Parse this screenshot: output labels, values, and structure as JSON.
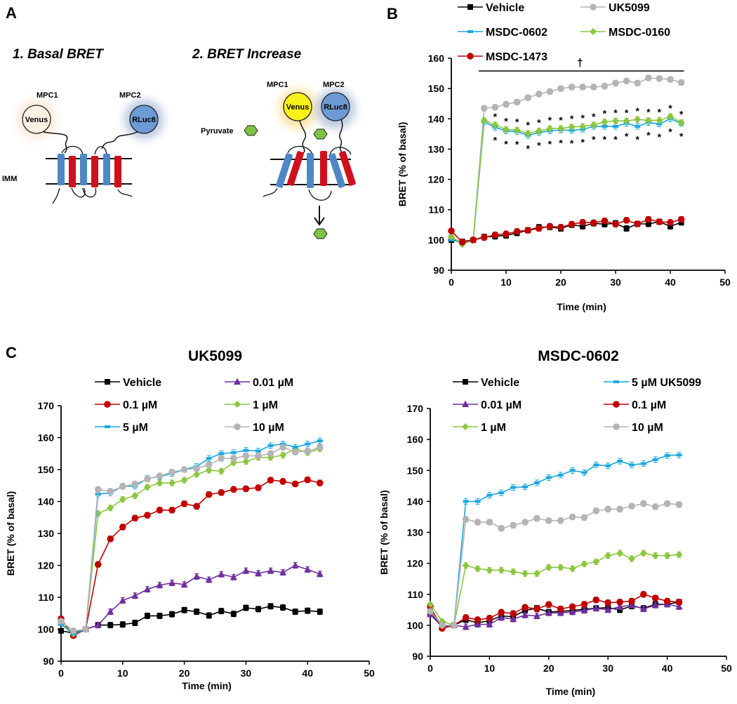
{
  "panels": {
    "A": {
      "letter": "A",
      "step1_title": "1. Basal BRET",
      "step2_title": "2. BRET Increase",
      "labels": {
        "mpc1": "MPC1",
        "mpc2": "MPC2",
        "venus": "Venus",
        "rluc8": "RLuc8",
        "imm": "IMM",
        "pyruvate": "Pyruvate"
      },
      "colors": {
        "helix_blue": "#4f86c6",
        "helix_red": "#d0101c",
        "venus_basal": "#fdf1e6",
        "venus_glow_basal": "#f7d9bf",
        "venus_active": "#f8f219",
        "venus_glow_active": "#f7d36b",
        "rluc8": "#6d9bd6",
        "rluc8_glow": "#8aa3c9",
        "pyruvate": "#7ec242"
      }
    },
    "B": {
      "letter": "B",
      "significance_dagger": "†",
      "significance_star": "*"
    },
    "C": {
      "letter": "C"
    }
  },
  "chart_data": [
    {
      "id": "B",
      "type": "line",
      "title": "",
      "xlabel": "Time (min)",
      "ylabel": "BRET (% of basal)",
      "xlim": [
        0,
        50
      ],
      "ylim": [
        90,
        160
      ],
      "xticks": [
        0,
        10,
        20,
        30,
        40,
        50
      ],
      "yticks": [
        90,
        100,
        110,
        120,
        130,
        140,
        150,
        160
      ],
      "legend_position": "top",
      "annotation": "† bar spanning 5–42 min; * above and below MSDC-0602/MSDC-0160 points",
      "x": [
        0,
        2,
        4,
        6,
        8,
        10,
        12,
        14,
        16,
        18,
        20,
        22,
        24,
        26,
        28,
        30,
        32,
        34,
        36,
        38,
        40,
        42
      ],
      "series": [
        {
          "name": "Vehicle",
          "color": "#000000",
          "marker": "square",
          "values": [
            100,
            99.5,
            100,
            101,
            101.2,
            101.5,
            102.3,
            103.2,
            104.2,
            104.3,
            103.8,
            105,
            104.5,
            105.5,
            105.2,
            105.5,
            103.8,
            105.3,
            105.3,
            106,
            104.5,
            105.8
          ]
        },
        {
          "name": "UK5099",
          "color": "#b4b4b4",
          "marker": "circle",
          "values": [
            101,
            99,
            100,
            143.5,
            143.8,
            144.8,
            145.5,
            147,
            148.2,
            149,
            150,
            150.5,
            150.5,
            150.5,
            150.8,
            151.8,
            152.5,
            151.8,
            153.5,
            153.3,
            153,
            152
          ]
        },
        {
          "name": "MSDC-0602",
          "color": "#1aa7e0",
          "marker": "dash",
          "values": [
            100,
            99,
            100,
            139,
            137.2,
            136,
            135.8,
            134.5,
            135.5,
            136,
            136.3,
            136.2,
            136.5,
            137.5,
            137.5,
            137.5,
            138.5,
            137.5,
            138.8,
            138.3,
            140,
            138.5
          ]
        },
        {
          "name": "MSDC-0160",
          "color": "#8cc63f",
          "marker": "diamond",
          "values": [
            101,
            98.5,
            100,
            139.5,
            138,
            136.5,
            136.3,
            135.2,
            136,
            136.8,
            136.8,
            137.3,
            137.5,
            138,
            139,
            139.3,
            139.3,
            139.8,
            139.5,
            139.5,
            140.8,
            138.8
          ]
        },
        {
          "name": "MSDC-1473",
          "color": "#c00000",
          "marker": "circle",
          "values": [
            103,
            99.3,
            100,
            100.8,
            101.7,
            102,
            102.8,
            103.2,
            103.8,
            104.5,
            104.2,
            105.2,
            105.8,
            105.7,
            106.3,
            105.2,
            106.5,
            105.3,
            106.8,
            106,
            105.8,
            106.8
          ]
        }
      ]
    },
    {
      "id": "C-left",
      "type": "line",
      "title": "UK5099",
      "xlabel": "Time (min)",
      "ylabel": "BRET (% of basal)",
      "xlim": [
        0,
        50
      ],
      "ylim": [
        90,
        170
      ],
      "xticks": [
        0,
        10,
        20,
        30,
        40,
        50
      ],
      "yticks": [
        90,
        100,
        110,
        120,
        130,
        140,
        150,
        160,
        170
      ],
      "legend_position": "top",
      "x": [
        0,
        2,
        4,
        6,
        8,
        10,
        12,
        14,
        16,
        18,
        20,
        22,
        24,
        26,
        28,
        30,
        32,
        34,
        36,
        38,
        40,
        42
      ],
      "series": [
        {
          "name": "Vehicle",
          "color": "#000000",
          "marker": "square",
          "values": [
            99.5,
            98.8,
            100,
            101.3,
            101.3,
            101.5,
            102,
            104.2,
            104.2,
            104.7,
            106,
            105.5,
            104.3,
            105.7,
            104.8,
            106.7,
            106.3,
            107.2,
            106.8,
            105.5,
            105.8,
            105.5
          ]
        },
        {
          "name": "0.01 µM",
          "color": "#7030a0",
          "marker": "triangle",
          "values": [
            102,
            98.5,
            100,
            101.3,
            105.5,
            109,
            110.5,
            112.5,
            113.8,
            114.5,
            114,
            116.5,
            115.5,
            117.2,
            116.3,
            118.3,
            117.5,
            118.3,
            117.8,
            120,
            118.7,
            117.3
          ]
        },
        {
          "name": "0.1 µM",
          "color": "#c00000",
          "marker": "circle",
          "values": [
            103.3,
            98,
            100,
            120.3,
            128.3,
            132,
            134.8,
            135.7,
            137.3,
            137.3,
            139.3,
            138.5,
            142.2,
            142.8,
            143.8,
            144,
            144.3,
            146.7,
            146.3,
            145.5,
            146.8,
            145.8
          ]
        },
        {
          "name": "1 µM",
          "color": "#8cc63f",
          "marker": "diamond",
          "values": [
            102,
            98.5,
            100,
            136.2,
            138,
            140.7,
            141.8,
            144.5,
            145.8,
            145.8,
            146.7,
            148.5,
            149.8,
            149.5,
            152.2,
            152.5,
            153.8,
            153.8,
            154.5,
            156.5,
            155.3,
            156.5
          ]
        },
        {
          "name": "5 µM",
          "color": "#1aa7e0",
          "marker": "dash",
          "values": [
            101.5,
            98.5,
            100,
            142.3,
            142.7,
            144.8,
            144.8,
            147.2,
            147.8,
            148.8,
            150,
            151,
            153.5,
            155,
            155.3,
            156,
            155.8,
            157.5,
            158,
            157,
            158,
            159
          ]
        },
        {
          "name": "10 µM",
          "color": "#b4b4b4",
          "marker": "circle",
          "values": [
            102.5,
            99.5,
            100,
            143.8,
            143.2,
            144.7,
            145.5,
            147,
            148,
            149.2,
            150,
            150.3,
            151.5,
            153.5,
            153.5,
            154.3,
            154.3,
            155,
            157,
            155.5,
            155.8,
            157
          ]
        }
      ]
    },
    {
      "id": "C-right",
      "type": "line",
      "title": "MSDC-0602",
      "xlabel": "Time (min)",
      "ylabel": "BRET (% of basal)",
      "xlim": [
        0,
        50
      ],
      "ylim": [
        90,
        170
      ],
      "xticks": [
        0,
        10,
        20,
        30,
        40,
        50
      ],
      "yticks": [
        90,
        100,
        110,
        120,
        130,
        140,
        150,
        160,
        170
      ],
      "legend_position": "top",
      "x": [
        0,
        2,
        4,
        6,
        8,
        10,
        12,
        14,
        16,
        18,
        20,
        22,
        24,
        26,
        28,
        30,
        32,
        34,
        36,
        38,
        40,
        42
      ],
      "series": [
        {
          "name": "Vehicle",
          "color": "#000000",
          "marker": "square",
          "values": [
            104,
            100,
            100,
            101.8,
            100.8,
            101.5,
            103,
            102.8,
            104.8,
            105.5,
            104.3,
            104.5,
            104.8,
            105.2,
            105.5,
            105.7,
            105,
            106.2,
            105.5,
            106.8,
            106.8,
            107.5
          ]
        },
        {
          "name": "5 µM UK5099",
          "color": "#1aa7e0",
          "marker": "dash",
          "values": [
            105,
            100,
            100,
            140,
            140,
            142,
            142.8,
            144.5,
            144.7,
            146,
            147.7,
            148.5,
            150,
            149.3,
            151.8,
            151.5,
            153,
            151.8,
            152.2,
            153.5,
            154.8,
            155
          ]
        },
        {
          "name": "0.01 µM",
          "color": "#7030a0",
          "marker": "triangle",
          "values": [
            103.5,
            99.5,
            100,
            99.5,
            100.3,
            100.3,
            102.5,
            102,
            103.3,
            103,
            104,
            104,
            104.3,
            104.8,
            105.5,
            105,
            106,
            106.5,
            105.3,
            106.5,
            106.8,
            106
          ]
        },
        {
          "name": "0.1 µM",
          "color": "#c00000",
          "marker": "circle",
          "values": [
            106,
            99,
            100,
            102.5,
            101.8,
            102.3,
            104.2,
            103.8,
            105.8,
            105.3,
            106.7,
            105.3,
            106,
            106.8,
            108.2,
            107.3,
            107.5,
            107.8,
            110,
            108.8,
            107.8,
            107.5
          ]
        },
        {
          "name": "1 µM",
          "color": "#8cc63f",
          "marker": "diamond",
          "values": [
            106.8,
            101.3,
            100,
            119.3,
            118.3,
            117.8,
            117.8,
            117.3,
            116.7,
            116.7,
            118.7,
            118.7,
            118.3,
            119.8,
            120.5,
            122.5,
            123.3,
            121.5,
            123.3,
            122.5,
            122.5,
            122.8
          ]
        },
        {
          "name": "10 µM",
          "color": "#b4b4b4",
          "marker": "circle",
          "values": [
            104.5,
            100,
            100,
            134.2,
            133.3,
            133.3,
            131.3,
            132.3,
            133.3,
            134.5,
            133.8,
            133.8,
            135,
            134.8,
            137,
            137.5,
            137.5,
            138.5,
            139.3,
            138.3,
            139.3,
            139
          ]
        }
      ]
    }
  ]
}
